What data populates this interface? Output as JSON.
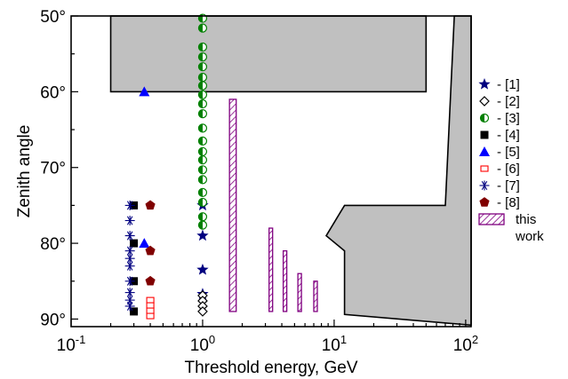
{
  "chart_data": {
    "type": "scatter",
    "xlabel": "Threshold energy, GeV",
    "ylabel": "Zenith angle",
    "x_scale": "log",
    "xlim": [
      0.1,
      110
    ],
    "ylim": [
      50,
      91
    ],
    "y_inverted": true,
    "x_ticks": [
      {
        "value": 0.1,
        "base": "10",
        "exp": "-1"
      },
      {
        "value": 1,
        "base": "10",
        "exp": "0"
      },
      {
        "value": 10,
        "base": "10",
        "exp": "1"
      },
      {
        "value": 100,
        "base": "10",
        "exp": "2"
      }
    ],
    "y_ticks": [
      {
        "value": 50,
        "label": "50°"
      },
      {
        "value": 60,
        "label": "60°"
      },
      {
        "value": 70,
        "label": "70°"
      },
      {
        "value": 80,
        "label": "80°"
      },
      {
        "value": 90,
        "label": "90°"
      }
    ],
    "gray_regions": [
      {
        "name": "top-band",
        "x_range": [
          0.2,
          50
        ],
        "y_range": [
          50,
          60
        ]
      },
      {
        "name": "right-band",
        "polygon": [
          [
            82,
            50
          ],
          [
            110,
            50
          ],
          [
            110,
            90.8
          ],
          [
            12,
            89.4
          ],
          [
            12,
            81
          ],
          [
            8.7,
            79
          ],
          [
            12,
            75
          ],
          [
            70,
            75
          ],
          [
            82,
            50
          ]
        ]
      }
    ],
    "colors": {
      "gray_fill": "#c0c0c0",
      "s1": "#000080",
      "s2": "#000000",
      "s3": "#008000",
      "s4": "#000000",
      "s5": "#0000ff",
      "s6": "#ff0000",
      "s7": "#000080",
      "s8": "#800000",
      "this_work": "#800080"
    },
    "series": [
      {
        "id": "s1",
        "marker": "star",
        "legend": "- [1]",
        "points": [
          [
            1.0,
            75
          ],
          [
            1.0,
            79
          ],
          [
            1.0,
            83.5
          ],
          [
            1.0,
            86.7
          ]
        ]
      },
      {
        "id": "s2",
        "marker": "diamond-open",
        "legend": "- [2]",
        "points": [
          [
            1.0,
            86.9
          ],
          [
            1.0,
            87.6
          ],
          [
            1.0,
            88.3
          ],
          [
            1.0,
            89.0
          ]
        ]
      },
      {
        "id": "s3",
        "marker": "half-circle",
        "legend": "- [3]",
        "points": [
          [
            1.0,
            50.3
          ],
          [
            1.0,
            51.6
          ],
          [
            1.0,
            54.1
          ],
          [
            1.0,
            55.4
          ],
          [
            1.0,
            56.7
          ],
          [
            1.0,
            58.1
          ],
          [
            1.0,
            59.2
          ],
          [
            1.0,
            60.4
          ],
          [
            1.0,
            61.6
          ],
          [
            1.0,
            62.9
          ],
          [
            1.0,
            64.8
          ],
          [
            1.0,
            66.5
          ],
          [
            1.0,
            67.9
          ],
          [
            1.0,
            69.0
          ],
          [
            1.0,
            70.3
          ],
          [
            1.0,
            71.6
          ],
          [
            1.0,
            73.3
          ],
          [
            1.0,
            74.6
          ],
          [
            1.0,
            76.5
          ],
          [
            1.0,
            77.6
          ]
        ]
      },
      {
        "id": "s4",
        "marker": "square",
        "legend": "- [4]",
        "points": [
          [
            0.3,
            75
          ],
          [
            0.3,
            80
          ],
          [
            0.3,
            85
          ],
          [
            0.3,
            89
          ]
        ]
      },
      {
        "id": "s5",
        "marker": "triangle",
        "legend": "- [5]",
        "points": [
          [
            0.36,
            60
          ],
          [
            0.36,
            80
          ]
        ]
      },
      {
        "id": "s6",
        "marker": "square-open",
        "legend": "- [6]",
        "points": [
          [
            0.4,
            87.5
          ],
          [
            0.4,
            88.2
          ],
          [
            0.4,
            88.9
          ],
          [
            0.4,
            89.6
          ]
        ]
      },
      {
        "id": "s7",
        "marker": "asterisk",
        "legend": "- [7]",
        "points": [
          [
            0.28,
            75
          ],
          [
            0.28,
            77
          ],
          [
            0.28,
            79
          ],
          [
            0.28,
            81
          ],
          [
            0.28,
            82
          ],
          [
            0.28,
            83
          ],
          [
            0.28,
            85
          ],
          [
            0.28,
            86.5
          ],
          [
            0.28,
            87.5
          ],
          [
            0.28,
            88.3
          ]
        ]
      },
      {
        "id": "s8",
        "marker": "pentagon",
        "legend": "- [8]",
        "points": [
          [
            0.4,
            75
          ],
          [
            0.4,
            81
          ],
          [
            0.4,
            85
          ]
        ]
      }
    ],
    "this_work": {
      "legend": "this\nwork",
      "legend_line1": "this",
      "legend_line2": "work",
      "bars": [
        {
          "x_range": [
            1.6,
            1.8
          ],
          "y_range": [
            61,
            89
          ]
        },
        {
          "x_range": [
            3.2,
            3.4
          ],
          "y_range": [
            78,
            89
          ]
        },
        {
          "x_range": [
            4.1,
            4.3
          ],
          "y_range": [
            81,
            89
          ]
        },
        {
          "x_range": [
            5.3,
            5.55
          ],
          "y_range": [
            84,
            89
          ]
        },
        {
          "x_range": [
            7.0,
            7.3
          ],
          "y_range": [
            85,
            89
          ]
        }
      ]
    }
  }
}
